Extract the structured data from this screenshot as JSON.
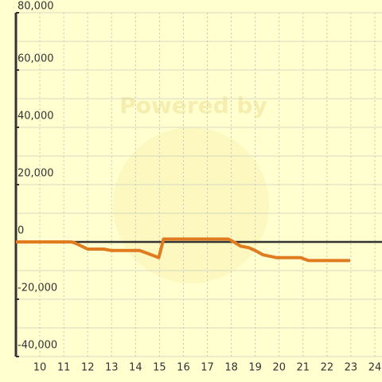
{
  "chart_data": {
    "type": "line",
    "watermark": "Powered by",
    "xlim": [
      9,
      24.3
    ],
    "ylim": [
      -40000,
      80000
    ],
    "xticks": [
      10,
      11,
      12,
      13,
      14,
      15,
      16,
      17,
      18,
      19,
      20,
      21,
      22,
      23,
      24
    ],
    "yticks": [
      {
        "value": -40000,
        "label": "-40,000"
      },
      {
        "value": -20000,
        "label": "-20,000"
      },
      0,
      {
        "value": 20000,
        "label": "20,000"
      },
      {
        "value": 40000,
        "label": "40,000"
      },
      {
        "value": 60000,
        "label": "60,000"
      },
      {
        "value": 80000,
        "label": "80,000"
      }
    ],
    "minor_yticks": [
      -30000,
      -10000,
      10000,
      30000,
      50000,
      70000
    ],
    "grid": true,
    "series": [
      {
        "color": "#e07b20",
        "x": [
          9,
          11.33,
          11.5,
          12,
          12.67,
          13,
          14.17,
          14.5,
          14.97,
          15.17,
          17.87,
          18,
          18.4,
          18.73,
          19,
          19.33,
          19.9,
          20.9,
          21.23,
          22.97
        ],
        "values": [
          0,
          0,
          -500,
          -2500,
          -2500,
          -3000,
          -3000,
          -4000,
          -5500,
          1000,
          1000,
          500,
          -1500,
          -2000,
          -3000,
          -4500,
          -5500,
          -5500,
          -6500,
          -6500
        ]
      }
    ]
  }
}
